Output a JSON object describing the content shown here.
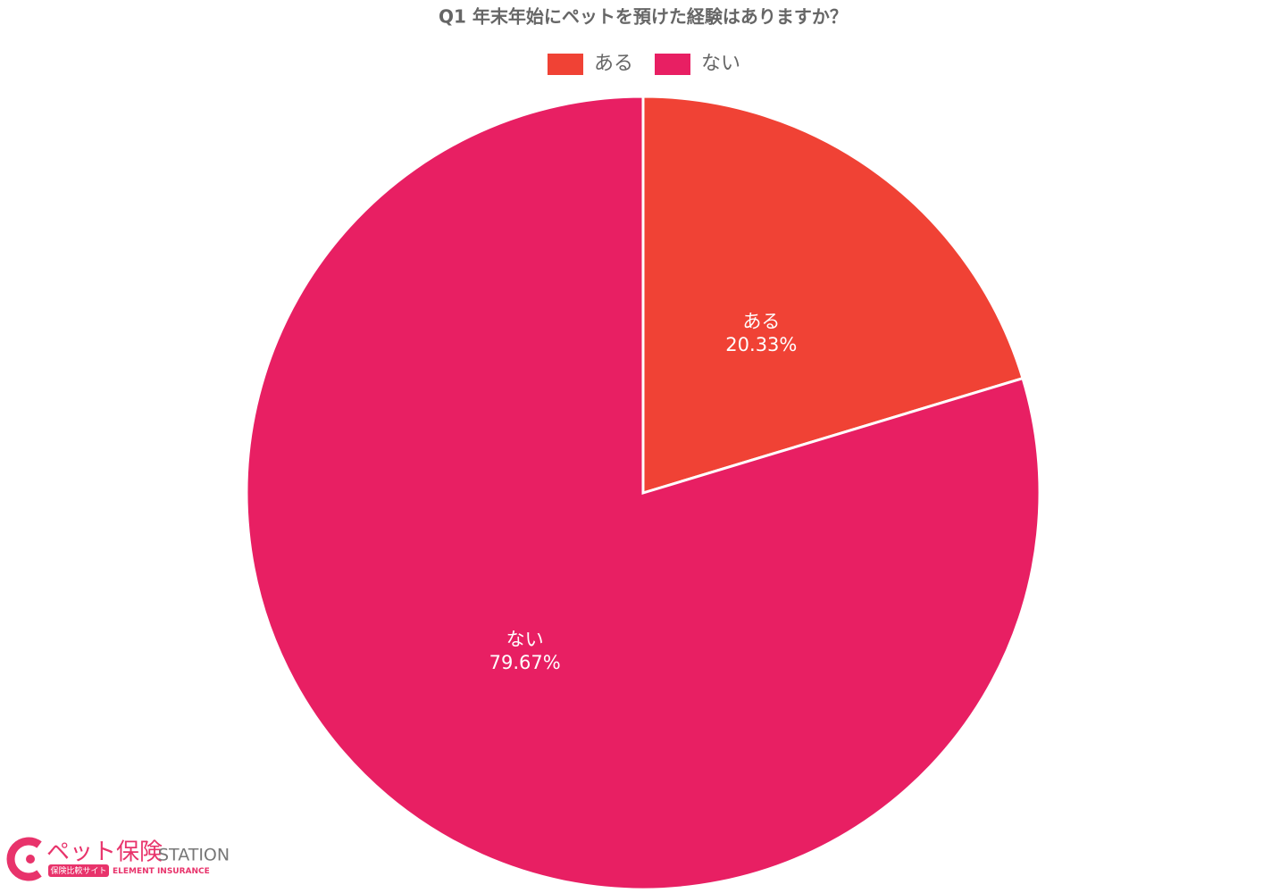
{
  "chart_data": {
    "type": "pie",
    "title": "Q1 年末年始にペットを預けた経験はありますか？",
    "categories": [
      "ある",
      "ない"
    ],
    "values": [
      20.33,
      79.67
    ],
    "value_labels": [
      "20.33%",
      "79.67%"
    ],
    "colors": [
      "#f04235",
      "#e81f63"
    ],
    "legend": "top"
  },
  "logo": {
    "name": "ペット保険",
    "suffix": "STATION",
    "tagline": "保険比較サイト",
    "company": "ELEMENT INSURANCE"
  }
}
